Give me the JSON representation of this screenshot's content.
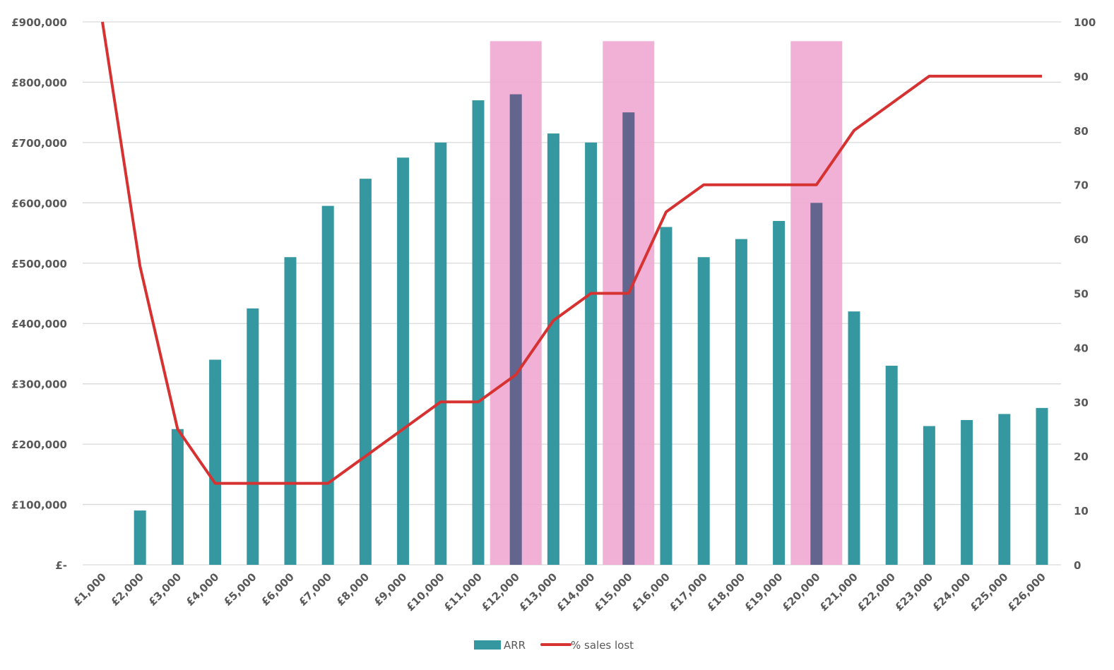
{
  "chart_data": {
    "type": "bar+line",
    "title": "",
    "xlabel": "",
    "ylabel": "",
    "y2label": "",
    "categories": [
      "£1,000",
      "£2,000",
      "£3,000",
      "£4,000",
      "£5,000",
      "£6,000",
      "£7,000",
      "£8,000",
      "£9,000",
      "£10,000",
      "£11,000",
      "£12,000",
      "£13,000",
      "£14,000",
      "£15,000",
      "£16,000",
      "£17,000",
      "£18,000",
      "£19,000",
      "£20,000",
      "£21,000",
      "£22,000",
      "£23,000",
      "£24,000",
      "£25,000",
      "£26,000"
    ],
    "series": [
      {
        "name": "ARR",
        "type": "bar",
        "axis": "left",
        "color": "#3598a0",
        "values": [
          0,
          90000,
          225000,
          340000,
          425000,
          510000,
          595000,
          640000,
          675000,
          700000,
          770000,
          780000,
          715000,
          700000,
          750000,
          560000,
          510000,
          540000,
          570000,
          600000,
          420000,
          330000,
          230000,
          240000,
          250000,
          260000
        ]
      },
      {
        "name": "% sales lost",
        "type": "line",
        "axis": "right",
        "color": "#d63232",
        "values": [
          100,
          55,
          25,
          15,
          15,
          15,
          15,
          20,
          25,
          30,
          30,
          35,
          45,
          50,
          50,
          65,
          70,
          70,
          70,
          70,
          80,
          85,
          90,
          90,
          90,
          90
        ]
      }
    ],
    "highlighted_categories": [
      "£12,000",
      "£15,000",
      "£20,000"
    ],
    "highlight_color": "#f0a8d2",
    "highlighted_bar_color": "#62668e",
    "y_left": {
      "range": [
        0,
        900000
      ],
      "ticks": [
        "£-",
        "£100,000",
        "£200,000",
        "£300,000",
        "£400,000",
        "£500,000",
        "£600,000",
        "£700,000",
        "£800,000",
        "£900,000"
      ]
    },
    "y_right": {
      "range": [
        0,
        100
      ],
      "ticks": [
        "0",
        "10",
        "20",
        "30",
        "40",
        "50",
        "60",
        "70",
        "80",
        "90",
        "100"
      ]
    },
    "grid": true,
    "legend": {
      "placement": "bottom",
      "entries": [
        "ARR",
        "% sales lost"
      ]
    }
  }
}
